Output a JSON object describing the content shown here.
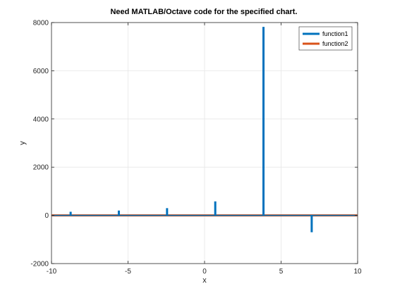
{
  "chart_data": {
    "type": "line",
    "title": "Need MATLAB/Octave code for the specified chart.",
    "xlabel": "x",
    "ylabel": "y",
    "xlim": [
      -10,
      10
    ],
    "ylim": [
      -2000,
      8000
    ],
    "xticks": [
      -10,
      -5,
      0,
      5,
      10
    ],
    "yticks": [
      -2000,
      0,
      2000,
      4000,
      6000,
      8000
    ],
    "grid": true,
    "legend_position": "top-right",
    "series": [
      {
        "name": "function1",
        "color": "#0072BD",
        "spikes": [
          {
            "x": -8.75,
            "low": -20,
            "high": 150
          },
          {
            "x": -5.6,
            "low": -20,
            "high": 200
          },
          {
            "x": -2.45,
            "low": -20,
            "high": 300
          },
          {
            "x": 0.7,
            "low": -20,
            "high": 580
          },
          {
            "x": 3.85,
            "low": -20,
            "high": 7820
          },
          {
            "x": 7.0,
            "low": -700,
            "high": 20
          }
        ]
      },
      {
        "name": "function2",
        "color": "#D95319",
        "x": [
          -10,
          10
        ],
        "y": [
          0,
          0
        ]
      }
    ]
  }
}
